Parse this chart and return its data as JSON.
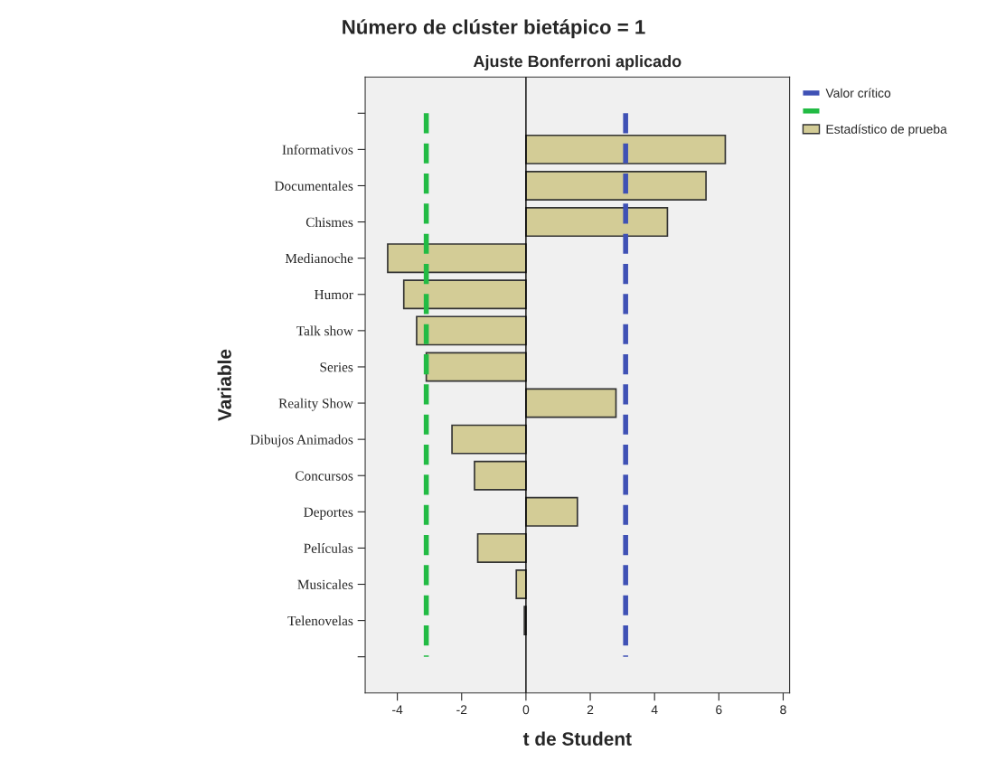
{
  "chart_data": {
    "type": "bar",
    "orientation": "horizontal",
    "title": "Número de clúster bietápico = 1",
    "subtitle": "Ajuste Bonferroni aplicado",
    "xlabel": "t de Student",
    "ylabel": "Variable",
    "categories": [
      null,
      "Informativos",
      "Documentales",
      "Chismes",
      "Medianoche",
      "Humor",
      "Talk show",
      "Series",
      "Reality Show",
      "Dibujos Animados",
      "Concursos",
      "Deportes",
      "Películas",
      "Musicales",
      "Telenovelas",
      null
    ],
    "series": [
      {
        "name": "Estadístico de prueba",
        "color": "#d3cc96",
        "values": [
          null,
          6.2,
          5.6,
          4.4,
          -4.3,
          -3.8,
          -3.4,
          -3.1,
          2.8,
          -2.3,
          -1.6,
          1.6,
          -1.5,
          -0.3,
          -0.05,
          null
        ]
      }
    ],
    "xlim": [
      -5,
      8.2
    ],
    "xticks": [
      -4,
      -2,
      0,
      2,
      4,
      6,
      8
    ],
    "ref_lines": [
      {
        "axis": "x",
        "value": 3.1,
        "label": "Valor crítico",
        "color": "#3f51b5",
        "line_style": "dashed"
      },
      {
        "axis": "x",
        "value": -3.1,
        "label": null,
        "color": "#22bb44",
        "line_style": "dashed"
      },
      {
        "axis": "x",
        "value": 0,
        "label": null,
        "color": "#000000",
        "line_style": "solid"
      }
    ],
    "grid": false,
    "legend": "top right"
  }
}
